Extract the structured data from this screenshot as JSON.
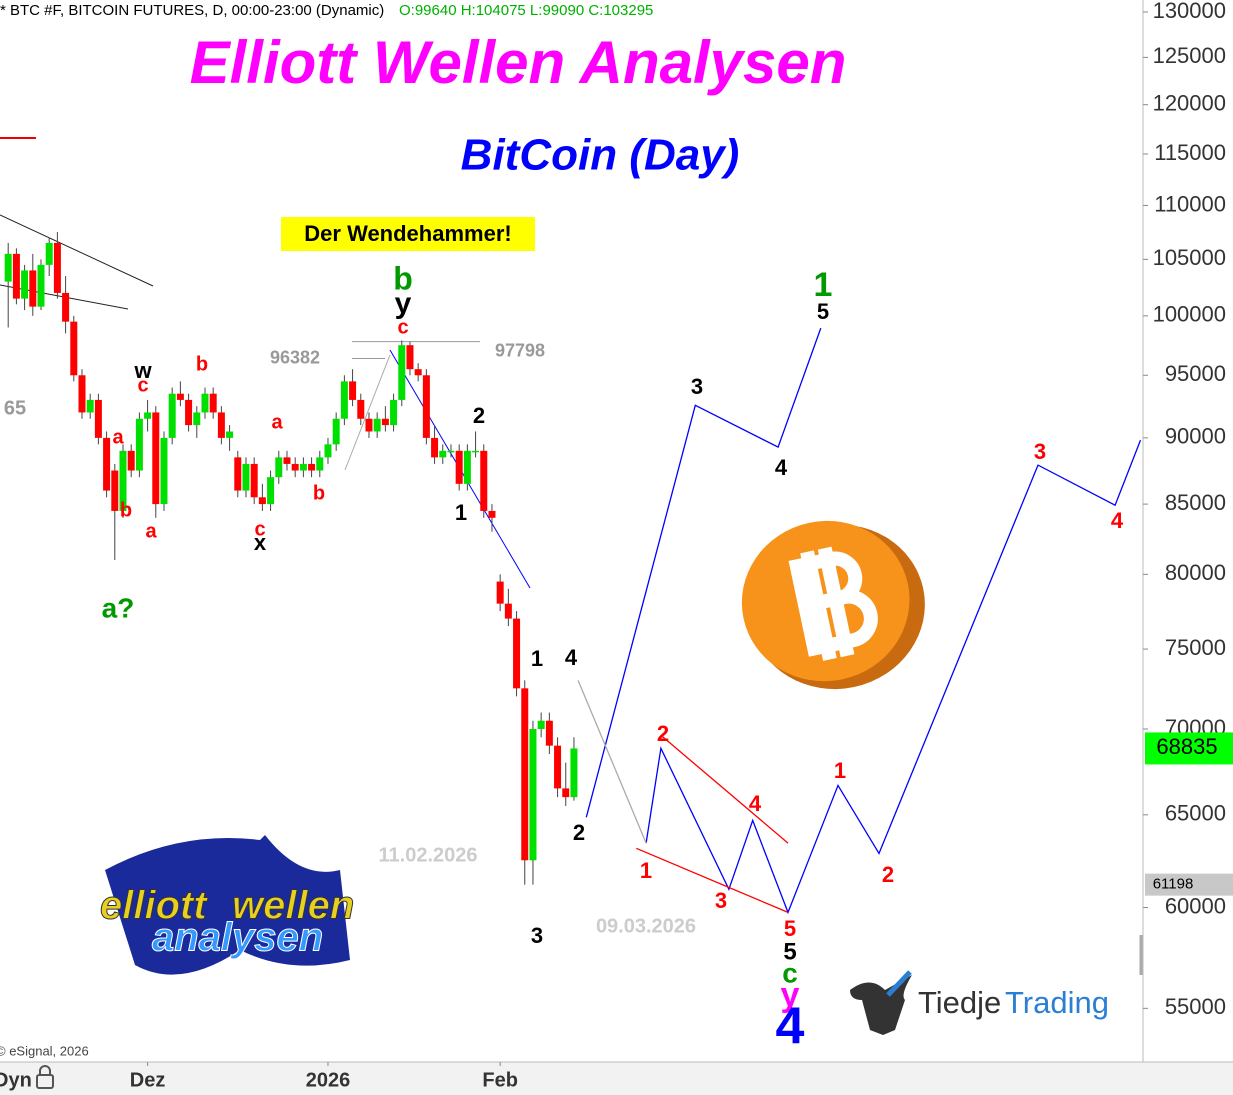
{
  "header": {
    "symbol": "* BTC #F, BITCOIN FUTURES, D, 00:00-23:00 (Dynamic)",
    "ohlc": "O:99640 H:104075 L:99090 C:103295",
    "copyright": "© eSignal, 2026",
    "mode": "Dyn"
  },
  "chart_data": {
    "type": "candlestick",
    "title": "Elliott Wellen Analysen",
    "subtitle": "BitCoin (Day)",
    "annotation": "Der Wendehammer!",
    "log_scale": true,
    "up_color": "#00e000",
    "down_color": "#ff0000",
    "x": [
      1,
      2,
      3,
      4,
      5,
      6,
      7,
      8,
      9,
      10,
      11,
      12,
      13,
      14,
      15,
      16,
      17,
      18,
      19,
      20,
      21,
      22,
      23,
      24,
      25,
      26,
      27,
      28,
      29,
      30,
      31,
      32,
      33,
      34,
      35,
      36,
      37,
      38,
      39,
      40,
      41,
      42,
      43,
      44,
      45,
      46,
      47,
      48,
      49,
      50,
      51,
      52,
      53,
      54,
      55,
      56,
      57,
      58,
      59,
      60,
      61,
      62,
      63,
      64,
      65,
      66,
      67,
      68,
      69,
      70
    ],
    "candles": [
      [
        103000,
        106500,
        99000,
        105500
      ],
      [
        105500,
        106000,
        101000,
        101500
      ],
      [
        101500,
        104500,
        100500,
        104000
      ],
      [
        104000,
        105500,
        100000,
        100800
      ],
      [
        100800,
        105000,
        100500,
        104500
      ],
      [
        104500,
        107000,
        103500,
        106500
      ],
      [
        106500,
        107500,
        101500,
        102000
      ],
      [
        102000,
        103500,
        98500,
        99500
      ],
      [
        99500,
        100000,
        94500,
        95000
      ],
      [
        95000,
        95500,
        91500,
        92000
      ],
      [
        92000,
        93500,
        91500,
        93000
      ],
      [
        93000,
        93500,
        89500,
        90000
      ],
      [
        90000,
        90500,
        85500,
        86000
      ],
      [
        87500,
        88000,
        81000,
        84500
      ],
      [
        84500,
        89500,
        84000,
        89000
      ],
      [
        89000,
        89500,
        87000,
        87500
      ],
      [
        87500,
        92000,
        87000,
        91500
      ],
      [
        91500,
        93000,
        90500,
        92000
      ],
      [
        92000,
        92500,
        84000,
        85000
      ],
      [
        85000,
        90500,
        84500,
        90000
      ],
      [
        90000,
        94000,
        89500,
        93500
      ],
      [
        93500,
        94500,
        92500,
        93000
      ],
      [
        93000,
        93500,
        90500,
        91000
      ],
      [
        91000,
        92500,
        90000,
        92000
      ],
      [
        92000,
        94000,
        91500,
        93500
      ],
      [
        93500,
        94000,
        91500,
        92000
      ],
      [
        92000,
        92500,
        89500,
        90000
      ],
      [
        90000,
        91000,
        89000,
        90500
      ],
      [
        88500,
        89000,
        85500,
        86000
      ],
      [
        86000,
        88500,
        85500,
        88000
      ],
      [
        88000,
        88500,
        85000,
        85500
      ],
      [
        85500,
        86500,
        84500,
        85000
      ],
      [
        85000,
        87500,
        84500,
        87000
      ],
      [
        87000,
        89000,
        86500,
        88500
      ],
      [
        88500,
        89000,
        87500,
        88000
      ],
      [
        88000,
        88500,
        87000,
        87500
      ],
      [
        87500,
        88500,
        87000,
        88000
      ],
      [
        88000,
        88500,
        87000,
        87500
      ],
      [
        87500,
        89000,
        87000,
        88500
      ],
      [
        88500,
        90000,
        88000,
        89500
      ],
      [
        89500,
        92000,
        89000,
        91500
      ],
      [
        91500,
        95000,
        91000,
        94500
      ],
      [
        94500,
        95500,
        92500,
        93000
      ],
      [
        93000,
        93500,
        91000,
        91500
      ],
      [
        91500,
        92000,
        90000,
        90500
      ],
      [
        90500,
        92000,
        90000,
        91500
      ],
      [
        91500,
        92500,
        90500,
        91000
      ],
      [
        91000,
        93500,
        90500,
        93000
      ],
      [
        93000,
        97900,
        92500,
        97500
      ],
      [
        97500,
        97800,
        95000,
        95500
      ],
      [
        95500,
        96000,
        94500,
        95000
      ],
      [
        95000,
        95500,
        89500,
        90000
      ],
      [
        90000,
        91000,
        88000,
        88500
      ],
      [
        88500,
        89500,
        88000,
        89000
      ],
      [
        89000,
        89500,
        88500,
        89000
      ],
      [
        89000,
        89500,
        86000,
        86500
      ],
      [
        86500,
        89500,
        86000,
        89000
      ],
      [
        89000,
        90500,
        88500,
        89000
      ],
      [
        89000,
        89500,
        84000,
        84500
      ],
      [
        84500,
        85000,
        83000,
        84000
      ],
      [
        79500,
        80000,
        77500,
        78000
      ],
      [
        78000,
        79000,
        76500,
        77000
      ],
      [
        77000,
        77500,
        72000,
        72500
      ],
      [
        72500,
        73000,
        61200,
        62500
      ],
      [
        62500,
        70500,
        61198,
        70000
      ],
      [
        70000,
        71000,
        69500,
        70500
      ],
      [
        70500,
        71000,
        68500,
        69000
      ],
      [
        69000,
        69500,
        66000,
        66500
      ],
      [
        66500,
        68000,
        65500,
        66000
      ],
      [
        66000,
        69500,
        65800,
        68835
      ]
    ],
    "xlim": [
      0,
      139.4
    ],
    "xticks": [
      {
        "value": 18,
        "label": "Dez"
      },
      {
        "value": 40,
        "label": "2026"
      },
      {
        "value": 61,
        "label": "Feb"
      }
    ],
    "ylim": [
      52600,
      131350
    ],
    "yticks": [
      55000,
      60000,
      65000,
      70000,
      75000,
      80000,
      85000,
      90000,
      95000,
      100000,
      105000,
      110000,
      115000,
      120000,
      125000,
      130000
    ],
    "level_labels": [
      96382,
      97798
    ],
    "last_price": 68835,
    "marker_price": 61198,
    "projections": [
      {
        "color": "#0000ff",
        "x": [
          71.5,
          84.8,
          94.9,
          100.1
        ],
        "values": [
          64860,
          92570,
          89290,
          98950
        ]
      },
      {
        "color": "#0000ff",
        "x": [
          78.8,
          80.6,
          88.9,
          91.8,
          96.1,
          102.2,
          107.2,
          126.6,
          136.0,
          139.1
        ],
        "values": [
          63430,
          68840,
          60950,
          64690,
          59750,
          66670,
          62870,
          87910,
          84920,
          89830
        ]
      },
      {
        "color": "#ff0000",
        "x": [
          80.6,
          96.1
        ],
        "values": [
          69620,
          63430
        ]
      },
      {
        "color": "#ff0000",
        "x": [
          77.6,
          96.1
        ],
        "values": [
          63150,
          59750
        ]
      },
      {
        "color": "#aaaaaa",
        "x": [
          70.5,
          78.8
        ],
        "values": [
          73000,
          63430
        ]
      }
    ],
    "wave_labels": [
      {
        "text": "w",
        "color": "#000000"
      },
      {
        "text": "c",
        "color": "#ff0000"
      },
      {
        "text": "b",
        "color": "#ff0000"
      },
      {
        "text": "a",
        "color": "#ff0000"
      },
      {
        "text": "b",
        "color": "#ff0000"
      },
      {
        "text": "a",
        "color": "#ff0000"
      },
      {
        "text": "c",
        "color": "#ff0000"
      },
      {
        "text": "x",
        "color": "#000000"
      },
      {
        "text": "a",
        "color": "#ff0000"
      },
      {
        "text": "b",
        "color": "#ff0000"
      },
      {
        "text": "b",
        "color": "#009900"
      },
      {
        "text": "y",
        "color": "#000000"
      },
      {
        "text": "c",
        "color": "#ff0000"
      },
      {
        "text": "2",
        "color": "#000000"
      },
      {
        "text": "1",
        "color": "#000000"
      },
      {
        "text": "1",
        "color": "#000000"
      },
      {
        "text": "4",
        "color": "#000000"
      },
      {
        "text": "2",
        "color": "#000000"
      },
      {
        "text": "3",
        "color": "#000000"
      },
      {
        "text": "3",
        "color": "#000000"
      },
      {
        "text": "4",
        "color": "#000000"
      },
      {
        "text": "5",
        "color": "#000000"
      },
      {
        "text": "1",
        "color": "#009900"
      },
      {
        "text": "2",
        "color": "#ff0000"
      },
      {
        "text": "1",
        "color": "#ff0000"
      },
      {
        "text": "3",
        "color": "#ff0000"
      },
      {
        "text": "4",
        "color": "#ff0000"
      },
      {
        "text": "5",
        "color": "#ff0000"
      },
      {
        "text": "5",
        "color": "#000000"
      },
      {
        "text": "c",
        "color": "#009900"
      },
      {
        "text": "y",
        "color": "#ff00ff"
      },
      {
        "text": "4",
        "color": "#0000ff"
      },
      {
        "text": "1",
        "color": "#ff0000"
      },
      {
        "text": "2",
        "color": "#ff0000"
      },
      {
        "text": "3",
        "color": "#ff0000"
      },
      {
        "text": "4",
        "color": "#ff0000"
      },
      {
        "text": "a?",
        "color": "#009900"
      }
    ],
    "notes": [
      {
        "text": "65",
        "color": "#999999"
      },
      {
        "text": "11.02.2026",
        "color": "#cccccc"
      },
      {
        "text": "09.03.2026",
        "color": "#cccccc"
      }
    ]
  },
  "logos": {
    "ew": [
      "elliott",
      "wellen",
      "analysen"
    ],
    "tiedje": [
      "Tiedje",
      "Trading"
    ]
  }
}
